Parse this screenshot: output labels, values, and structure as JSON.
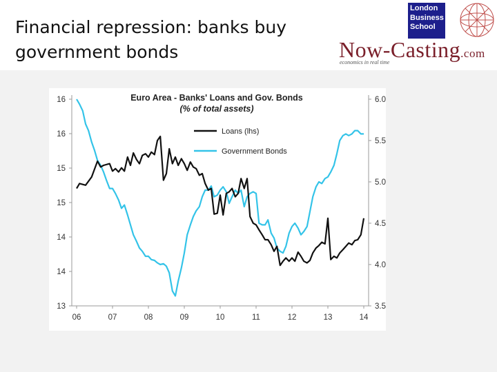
{
  "slide": {
    "title": "Financial repression: banks buy government bonds"
  },
  "brand": {
    "lbs_line1": "London",
    "lbs_line2": "Business",
    "lbs_line3": "School",
    "nowcasting": "Now-Casting",
    "dotcom": ".com",
    "tagline": "economics in real time"
  },
  "colors": {
    "loans": "#111111",
    "bonds": "#33c3e8",
    "brand": "#7a1f2a",
    "lbs_blue": "#1d1f8c",
    "globe": "#c0504d"
  },
  "chart_data": {
    "type": "line",
    "title": "Euro Area - Banks' Loans and Gov. Bonds",
    "subtitle": "(% of total assets)",
    "x_ticks": [
      "06",
      "07",
      "08",
      "09",
      "10",
      "11",
      "12",
      "13",
      "14"
    ],
    "x_range": [
      2006,
      2014
    ],
    "y_left_ticks": [
      "16",
      "16",
      "15",
      "15",
      "14",
      "14",
      "13"
    ],
    "y_right_ticks": [
      "6.0",
      "5.5",
      "5.0",
      "4.5",
      "4.0",
      "3.5"
    ],
    "y_right_range": [
      3.5,
      6.0
    ],
    "legend_position": "top-center",
    "series": [
      {
        "name": "Loans (lhs)",
        "axis": "left",
        "note": "left-axis values expressed on the right-axis scale equivalent",
        "x": [
          2006.0,
          2006.08,
          2006.25,
          2006.42,
          2006.58,
          2006.67,
          2006.75,
          2006.92,
          2007.0,
          2007.08,
          2007.17,
          2007.25,
          2007.33,
          2007.42,
          2007.5,
          2007.58,
          2007.67,
          2007.75,
          2007.83,
          2007.92,
          2008.0,
          2008.08,
          2008.17,
          2008.25,
          2008.33,
          2008.42,
          2008.5,
          2008.58,
          2008.67,
          2008.75,
          2008.83,
          2008.92,
          2009.0,
          2009.08,
          2009.17,
          2009.25,
          2009.33,
          2009.42,
          2009.5,
          2009.58,
          2009.67,
          2009.75,
          2009.83,
          2009.92,
          2010.0,
          2010.08,
          2010.17,
          2010.25,
          2010.33,
          2010.42,
          2010.5,
          2010.58,
          2010.67,
          2010.75,
          2010.83,
          2010.92,
          2011.0,
          2011.08,
          2011.17,
          2011.25,
          2011.33,
          2011.42,
          2011.5,
          2011.58,
          2011.67,
          2011.75,
          2011.83,
          2011.92,
          2012.0,
          2012.08,
          2012.17,
          2012.25,
          2012.33,
          2012.42,
          2012.5,
          2012.58,
          2012.67,
          2012.75,
          2012.83,
          2012.92,
          2013.0,
          2013.08,
          2013.17,
          2013.25,
          2013.33,
          2013.42,
          2013.5,
          2013.58,
          2013.67,
          2013.75,
          2013.83,
          2013.92,
          2014.0
        ],
        "values": [
          4.92,
          4.98,
          4.96,
          5.06,
          5.25,
          5.18,
          5.2,
          5.22,
          5.13,
          5.16,
          5.12,
          5.17,
          5.13,
          5.3,
          5.2,
          5.35,
          5.27,
          5.22,
          5.32,
          5.34,
          5.3,
          5.36,
          5.33,
          5.5,
          5.55,
          5.02,
          5.1,
          5.4,
          5.22,
          5.3,
          5.2,
          5.28,
          5.22,
          5.14,
          5.24,
          5.18,
          5.16,
          5.08,
          5.1,
          4.98,
          4.9,
          4.92,
          4.61,
          4.62,
          4.84,
          4.6,
          4.86,
          4.88,
          4.92,
          4.82,
          4.86,
          5.04,
          4.92,
          5.04,
          4.58,
          4.5,
          4.48,
          4.42,
          4.36,
          4.3,
          4.3,
          4.24,
          4.16,
          4.22,
          3.99,
          4.04,
          4.08,
          4.04,
          4.08,
          4.04,
          4.15,
          4.1,
          4.04,
          4.02,
          4.05,
          4.14,
          4.2,
          4.23,
          4.27,
          4.25,
          4.56,
          4.06,
          4.1,
          4.08,
          4.14,
          4.18,
          4.22,
          4.26,
          4.24,
          4.29,
          4.3,
          4.36,
          4.56
        ]
      },
      {
        "name": "Government Bonds",
        "axis": "right",
        "x": [
          2006.0,
          2006.08,
          2006.17,
          2006.25,
          2006.33,
          2006.42,
          2006.5,
          2006.58,
          2006.67,
          2006.75,
          2006.83,
          2006.92,
          2007.0,
          2007.08,
          2007.17,
          2007.25,
          2007.33,
          2007.42,
          2007.5,
          2007.58,
          2007.67,
          2007.75,
          2007.83,
          2007.92,
          2008.0,
          2008.08,
          2008.17,
          2008.25,
          2008.33,
          2008.42,
          2008.5,
          2008.58,
          2008.67,
          2008.75,
          2008.83,
          2008.92,
          2009.0,
          2009.08,
          2009.17,
          2009.25,
          2009.33,
          2009.42,
          2009.5,
          2009.58,
          2009.67,
          2009.75,
          2009.83,
          2009.92,
          2010.0,
          2010.08,
          2010.17,
          2010.25,
          2010.33,
          2010.42,
          2010.5,
          2010.58,
          2010.67,
          2010.75,
          2010.83,
          2010.92,
          2011.0,
          2011.08,
          2011.17,
          2011.25,
          2011.33,
          2011.42,
          2011.5,
          2011.58,
          2011.67,
          2011.75,
          2011.83,
          2011.92,
          2012.0,
          2012.08,
          2012.17,
          2012.25,
          2012.33,
          2012.42,
          2012.5,
          2012.58,
          2012.67,
          2012.75,
          2012.83,
          2012.92,
          2013.0,
          2013.08,
          2013.17,
          2013.25,
          2013.33,
          2013.42,
          2013.5,
          2013.58,
          2013.67,
          2013.75,
          2013.83,
          2013.92,
          2014.0
        ],
        "values": [
          6.0,
          5.94,
          5.86,
          5.7,
          5.62,
          5.48,
          5.38,
          5.26,
          5.2,
          5.12,
          5.02,
          4.92,
          4.92,
          4.86,
          4.78,
          4.68,
          4.72,
          4.6,
          4.48,
          4.36,
          4.28,
          4.2,
          4.16,
          4.1,
          4.1,
          4.06,
          4.05,
          4.02,
          4.0,
          4.01,
          3.98,
          3.9,
          3.68,
          3.62,
          3.8,
          3.96,
          4.14,
          4.36,
          4.48,
          4.58,
          4.65,
          4.7,
          4.82,
          4.9,
          4.9,
          4.95,
          4.82,
          4.84,
          4.9,
          4.94,
          4.88,
          4.74,
          4.82,
          4.9,
          4.86,
          4.9,
          4.7,
          4.82,
          4.86,
          4.88,
          4.86,
          4.5,
          4.48,
          4.48,
          4.54,
          4.38,
          4.32,
          4.2,
          4.16,
          4.14,
          4.22,
          4.38,
          4.46,
          4.5,
          4.44,
          4.36,
          4.4,
          4.46,
          4.64,
          4.82,
          4.94,
          5.0,
          4.98,
          5.04,
          5.06,
          5.12,
          5.2,
          5.34,
          5.5,
          5.56,
          5.58,
          5.56,
          5.58,
          5.62,
          5.62,
          5.58,
          5.58
        ]
      }
    ]
  }
}
